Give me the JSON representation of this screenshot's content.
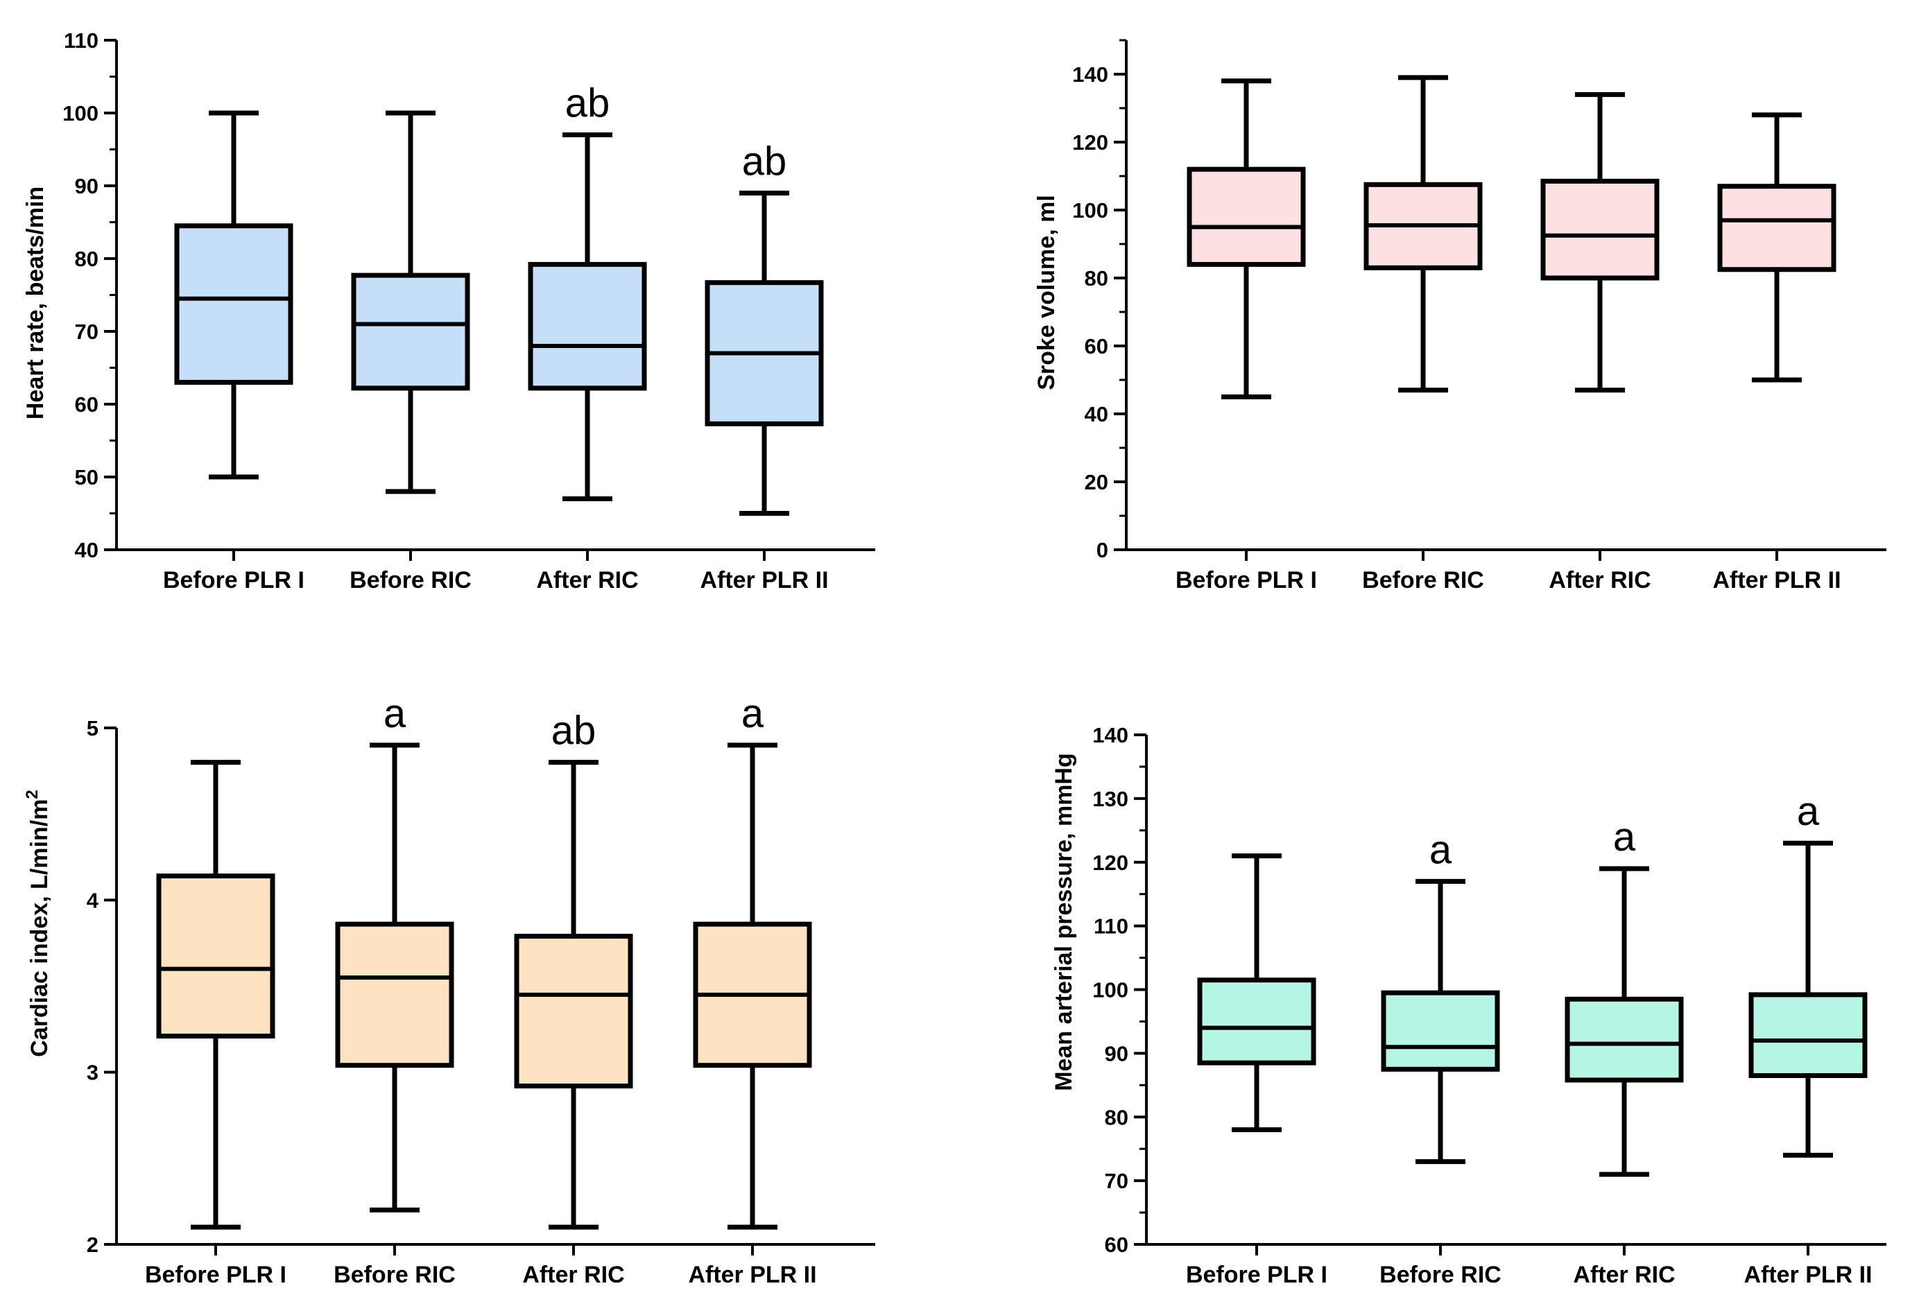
{
  "chart_data": [
    {
      "type": "boxplot",
      "id": "heart-rate",
      "title": "",
      "ylabel": "Heart rate, beats/min",
      "ylim": [
        40,
        110
      ],
      "yticks": [
        40,
        50,
        60,
        70,
        80,
        90,
        100,
        110
      ],
      "minor_step": 5,
      "fill": "#c5dff8",
      "categories": [
        "Before PLR I",
        "Before RIC",
        "After RIC",
        "After PLR II"
      ],
      "boxes": [
        {
          "min": 50,
          "q1": 63,
          "median": 74.5,
          "q3": 84.5,
          "max": 100,
          "annotation": ""
        },
        {
          "min": 48,
          "q1": 62.2,
          "median": 71,
          "q3": 77.7,
          "max": 100,
          "annotation": ""
        },
        {
          "min": 47,
          "q1": 62.2,
          "median": 68,
          "q3": 79.2,
          "max": 97,
          "annotation": "ab"
        },
        {
          "min": 45,
          "q1": 57.3,
          "median": 67,
          "q3": 76.7,
          "max": 89,
          "annotation": "ab"
        }
      ]
    },
    {
      "type": "boxplot",
      "id": "stroke-volume",
      "title": "",
      "ylabel": "Sroke volume, ml",
      "ylim": [
        0,
        150
      ],
      "yticks": [
        0,
        20,
        40,
        60,
        80,
        100,
        120,
        140
      ],
      "minor_step": 10,
      "fill": "#fde0e2",
      "categories": [
        "Before PLR I",
        "Before RIC",
        "After RIC",
        "After PLR II"
      ],
      "boxes": [
        {
          "min": 45,
          "q1": 84,
          "median": 95,
          "q3": 112,
          "max": 138,
          "annotation": ""
        },
        {
          "min": 47,
          "q1": 83,
          "median": 95.5,
          "q3": 107.5,
          "max": 139,
          "annotation": ""
        },
        {
          "min": 47,
          "q1": 80,
          "median": 92.5,
          "q3": 108.5,
          "max": 134,
          "annotation": ""
        },
        {
          "min": 50,
          "q1": 82.5,
          "median": 97,
          "q3": 107,
          "max": 128,
          "annotation": ""
        }
      ]
    },
    {
      "type": "boxplot",
      "id": "cardiac-index",
      "title": "",
      "ylabel": "Cardiac index, L/min/m",
      "ylabel_superscript": "2",
      "ylim": [
        2,
        5
      ],
      "yticks": [
        2,
        3,
        4,
        5
      ],
      "minor_step": 0,
      "fill": "#fde3c2",
      "categories": [
        "Before PLR I",
        "Before RIC",
        "After RIC",
        "After PLR II"
      ],
      "boxes": [
        {
          "min": 2.1,
          "q1": 3.21,
          "median": 3.6,
          "q3": 4.14,
          "max": 4.8,
          "annotation": ""
        },
        {
          "min": 2.2,
          "q1": 3.04,
          "median": 3.55,
          "q3": 3.86,
          "max": 4.9,
          "annotation": "a"
        },
        {
          "min": 2.1,
          "q1": 2.92,
          "median": 3.45,
          "q3": 3.79,
          "max": 4.8,
          "annotation": "ab"
        },
        {
          "min": 2.1,
          "q1": 3.04,
          "median": 3.45,
          "q3": 3.86,
          "max": 4.9,
          "annotation": "a"
        }
      ]
    },
    {
      "type": "boxplot",
      "id": "mean-arterial-pressure",
      "title": "",
      "ylabel": "Mean arterial pressure, mmHg",
      "ylim": [
        60,
        140
      ],
      "yticks": [
        60,
        70,
        80,
        90,
        100,
        110,
        120,
        130,
        140
      ],
      "minor_step": 5,
      "fill": "#b5f5e5",
      "categories": [
        "Before PLR I",
        "Before RIC",
        "After RIC",
        "After PLR II"
      ],
      "boxes": [
        {
          "min": 78,
          "q1": 88.5,
          "median": 94,
          "q3": 101.5,
          "max": 121,
          "annotation": ""
        },
        {
          "min": 73,
          "q1": 87.5,
          "median": 91,
          "q3": 99.5,
          "max": 117,
          "annotation": "a"
        },
        {
          "min": 71,
          "q1": 85.8,
          "median": 91.5,
          "q3": 98.5,
          "max": 119,
          "annotation": "a"
        },
        {
          "min": 74,
          "q1": 86.5,
          "median": 92,
          "q3": 99.2,
          "max": 123,
          "annotation": "a"
        }
      ]
    }
  ]
}
